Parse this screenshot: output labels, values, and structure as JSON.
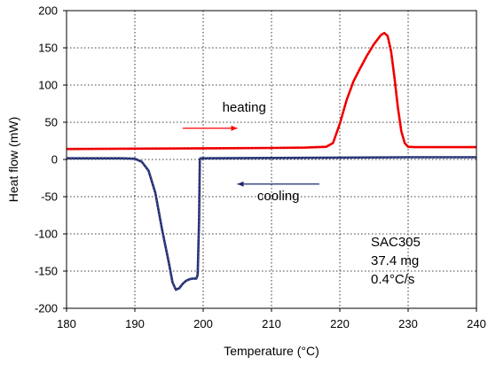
{
  "chart_data": {
    "type": "line",
    "xlabel": "Temperature (°C)",
    "ylabel": "Heat flow (mW)",
    "xlim": [
      180,
      240
    ],
    "ylim": [
      -200,
      200
    ],
    "x_ticks": [
      180,
      190,
      200,
      210,
      220,
      230,
      240
    ],
    "y_ticks": [
      -200,
      -150,
      -100,
      -50,
      0,
      50,
      100,
      150,
      200
    ],
    "grid": true,
    "series": [
      {
        "color": "#ff0000",
        "x": [
          180,
          190,
          200,
          210,
          215,
          218,
          219,
          220,
          221,
          222,
          223,
          224,
          225,
          226,
          226.5,
          227,
          227.5,
          228,
          228.5,
          229,
          229.5,
          230,
          231,
          233,
          240
        ],
        "values": [
          14,
          14.5,
          15,
          15.5,
          16,
          17,
          22,
          48,
          80,
          105,
          123,
          140,
          155,
          167,
          170,
          166,
          145,
          110,
          70,
          38,
          22,
          17,
          16.5,
          16.5,
          16.5
        ]
      },
      {
        "color": "#1f2a6b",
        "x": [
          180,
          188,
          190,
          191,
          192,
          193,
          194,
          195,
          195.5,
          196,
          196.5,
          197,
          197.5,
          198,
          198.5,
          199,
          199.2,
          199.4,
          199.5,
          199.6,
          200,
          210,
          220,
          230,
          240
        ],
        "values": [
          1.5,
          1.5,
          1,
          -3,
          -15,
          -45,
          -95,
          -140,
          -165,
          -175,
          -173,
          -167,
          -163,
          -161,
          -160,
          -160,
          -155,
          -80,
          0,
          1.5,
          1.5,
          2,
          2.5,
          3,
          3
        ]
      }
    ],
    "annotations": [
      {
        "text": "heating",
        "x": 206,
        "y": 64,
        "arrow_from": [
          197,
          42
        ],
        "arrow_to": [
          205,
          42
        ],
        "color": "#ff0000"
      },
      {
        "text": "cooling",
        "x": 211,
        "y": -55,
        "arrow_from": [
          217,
          -33
        ],
        "arrow_to": [
          205,
          -33
        ],
        "color": "#1f2a6b"
      }
    ],
    "info_box": [
      "SAC305",
      "37.4 mg",
      "0.4°C/s"
    ]
  }
}
